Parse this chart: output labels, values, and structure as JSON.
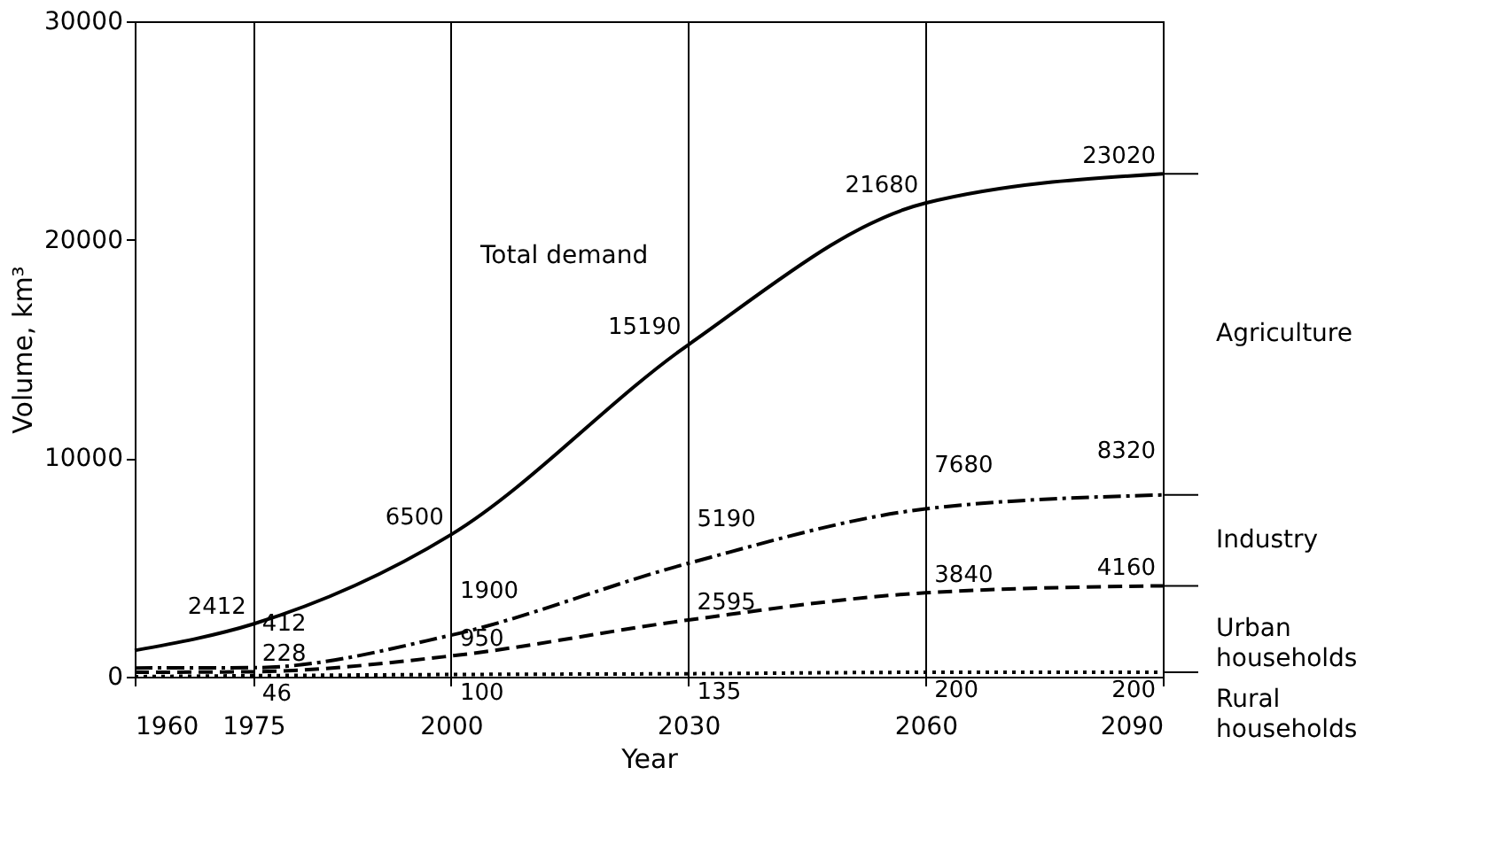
{
  "chart_data": {
    "type": "line",
    "xlabel": "Year",
    "ylabel": "Volume, km³",
    "x": [
      1960,
      1975,
      2000,
      2030,
      2060,
      2090
    ],
    "xlim": [
      1960,
      2090
    ],
    "xticks": [
      1960,
      1975,
      2000,
      2030,
      2060,
      2090
    ],
    "ylim": [
      0,
      30000
    ],
    "yticks": [
      0,
      10000,
      20000,
      30000
    ],
    "grid": "x",
    "marker": "none",
    "series": [
      {
        "name": "Total demand",
        "color": "#000000",
        "line_style": "solid",
        "values": [
          1200,
          2412,
          6500,
          15190,
          21680,
          23020
        ],
        "value_labels": [
          null,
          "2412",
          "6500",
          "15190",
          "21680",
          "23020"
        ]
      },
      {
        "color": "#000000",
        "line_style": "dashdot",
        "values": [
          400,
          412,
          1900,
          5190,
          7680,
          8320
        ],
        "value_labels": [
          null,
          "412",
          "1900",
          "5190",
          "7680",
          "8320"
        ]
      },
      {
        "color": "#000000",
        "line_style": "dashed",
        "values": [
          200,
          228,
          950,
          2595,
          3840,
          4160
        ],
        "value_labels": [
          null,
          "228",
          "950",
          "2595",
          "3840",
          "4160"
        ]
      },
      {
        "color": "#000000",
        "line_style": "dotted",
        "values": [
          0,
          46,
          100,
          135,
          200,
          200
        ],
        "value_labels": [
          null,
          "46",
          "100",
          "135",
          "200",
          "200"
        ]
      }
    ],
    "annotations": [
      "Agriculture",
      "Industry",
      "Urban households",
      "Rural households"
    ]
  }
}
